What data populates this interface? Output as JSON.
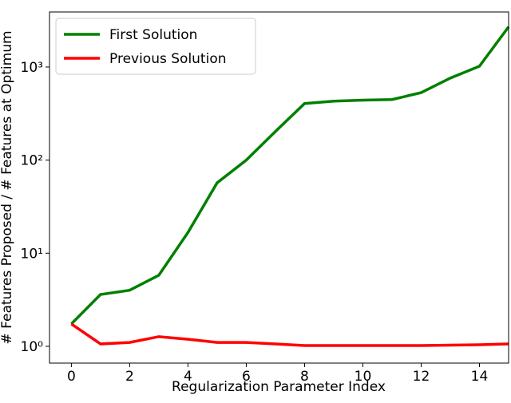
{
  "chart_data": {
    "type": "line",
    "xlabel": "Regularization Parameter Index",
    "ylabel": "# Features Proposed / # Features at Optimum",
    "x": [
      0,
      1,
      2,
      3,
      4,
      5,
      6,
      7,
      8,
      9,
      10,
      11,
      12,
      13,
      14,
      15
    ],
    "series": [
      {
        "name": "First Solution",
        "color": "#008000",
        "values": [
          1.74,
          3.6,
          4.0,
          5.8,
          16.7,
          57,
          100,
          203,
          405,
          430,
          440,
          447,
          530,
          760,
          1020,
          2700
        ]
      },
      {
        "name": "Previous Solution",
        "color": "#ff0000",
        "values": [
          1.74,
          1.06,
          1.1,
          1.27,
          1.19,
          1.1,
          1.1,
          1.06,
          1.02,
          1.02,
          1.02,
          1.02,
          1.02,
          1.03,
          1.04,
          1.06
        ]
      }
    ],
    "xlim": [
      -0.75,
      15
    ],
    "xticks": [
      0,
      2,
      4,
      6,
      8,
      10,
      12,
      14
    ],
    "ylim": [
      0.66,
      3900
    ],
    "yscale": "log",
    "yticks": [
      {
        "value": 1,
        "label": "10⁰"
      },
      {
        "value": 10,
        "label": "10¹"
      },
      {
        "value": 100,
        "label": "10²"
      },
      {
        "value": 1000,
        "label": "10³"
      }
    ],
    "legend": "upper left"
  }
}
